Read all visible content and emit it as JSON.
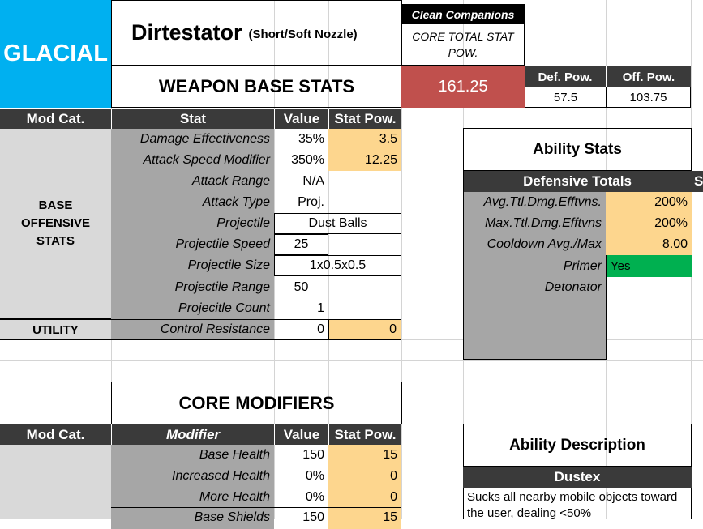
{
  "header": {
    "element_label": "GLACIAL",
    "weapon_name": "Dirtestator",
    "weapon_variant": "(Short/Soft Nozzle)",
    "section_title": "WEAPON BASE STATS",
    "clean_companions_label": "Clean Companions",
    "core_total_label": "CORE TOTAL STAT POW.",
    "core_total_value": "161.25",
    "def_pow_label": "Def. Pow.",
    "off_pow_label": "Off. Pow.",
    "def_pow_value": "57.5",
    "off_pow_value": "103.75"
  },
  "base_table": {
    "headers": {
      "mod_cat": "Mod Cat.",
      "stat": "Stat",
      "value": "Value",
      "stat_pow": "Stat Pow."
    },
    "offensive_category": "BASE OFFENSIVE STATS",
    "utility_category": "UTILITY",
    "rows": [
      {
        "stat": "Damage Effectiveness",
        "value": "35%",
        "pow": "3.5"
      },
      {
        "stat": "Attack Speed Modifier",
        "value": "350%",
        "pow": "12.25"
      },
      {
        "stat": "Attack Range",
        "value": "N/A",
        "pow": ""
      },
      {
        "stat": "Attack Type",
        "value": "Proj.",
        "pow": ""
      },
      {
        "stat": "Projectile",
        "value": "Dust Balls",
        "pow": ""
      },
      {
        "stat": "Projectile Speed",
        "value": "25",
        "pow": ""
      },
      {
        "stat": "Projectile Size",
        "value": "1x0.5x0.5",
        "pow": ""
      },
      {
        "stat": "Projectile Range",
        "value": "50",
        "pow": ""
      },
      {
        "stat": "Projecitle Count",
        "value": "1",
        "pow": ""
      },
      {
        "stat": "Control Resistance",
        "value": "0",
        "pow": "0"
      }
    ]
  },
  "core_modifiers": {
    "title": "CORE MODIFIERS",
    "headers": {
      "mod_cat": "Mod Cat.",
      "modifier": "Modifier",
      "value": "Value",
      "stat_pow": "Stat Pow."
    },
    "rows": [
      {
        "modifier": "Base Health",
        "value": "150",
        "pow": "15"
      },
      {
        "modifier": "Increased Health",
        "value": "0%",
        "pow": "0"
      },
      {
        "modifier": "More Health",
        "value": "0%",
        "pow": "0"
      },
      {
        "modifier": "Base Shields",
        "value": "150",
        "pow": "15"
      }
    ]
  },
  "ability_stats": {
    "title": "Ability Stats",
    "defensive_totals_label": "Defensive Totals",
    "rows": [
      {
        "label": "Avg.Ttl.Dmg.Efftvns.",
        "value": "200%"
      },
      {
        "label": "Max.Ttl.Dmg.Efftvns",
        "value": "200%"
      },
      {
        "label": "Cooldown Avg./Max",
        "value": "8.00"
      }
    ],
    "primer_label": "Primer",
    "primer_value": "Yes",
    "detonator_label": "Detonator"
  },
  "ability_description": {
    "title": "Ability Description",
    "ability_name": "Dustex",
    "text": "Sucks all nearby mobile objects toward the user, dealing <50%"
  },
  "colors": {
    "glacial_blue": "#00b0f0",
    "dark_header": "#3a3a3a",
    "core_total_red": "#c0504d",
    "yellow_pow": "#fdd68e",
    "primer_green": "#00b050"
  }
}
